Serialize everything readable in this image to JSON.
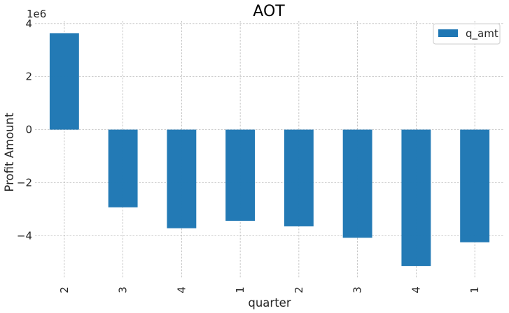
{
  "chart_data": {
    "type": "bar",
    "title": "AOT",
    "xlabel": "quarter",
    "ylabel": "Profit Amount",
    "offset_text": "1e6",
    "categories": [
      "2",
      "3",
      "4",
      "1",
      "2",
      "3",
      "4",
      "1"
    ],
    "series": [
      {
        "name": "q_amt",
        "color": "#1f77b4",
        "values": [
          3640000,
          -2930000,
          -3720000,
          -3440000,
          -3650000,
          -4080000,
          -5150000,
          -4250000
        ]
      }
    ],
    "ylim": [
      -5600000,
      4100000
    ],
    "yticks": [
      -4000000,
      -2000000,
      0,
      2000000,
      4000000
    ],
    "ytick_labels": [
      "−4",
      "−2",
      "0",
      "2",
      "4"
    ],
    "grid": true,
    "legend_position": "top-right"
  }
}
